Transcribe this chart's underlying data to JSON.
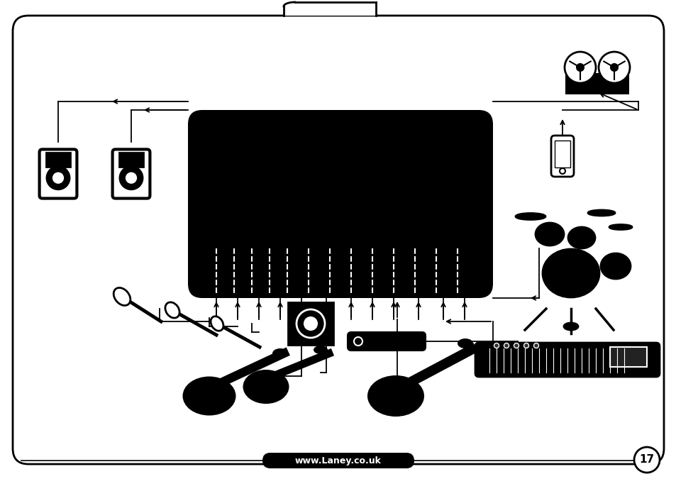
{
  "bg_color": "#ffffff",
  "border_color": "#000000",
  "page_num": "17",
  "website": "www.Laney.co.uk"
}
